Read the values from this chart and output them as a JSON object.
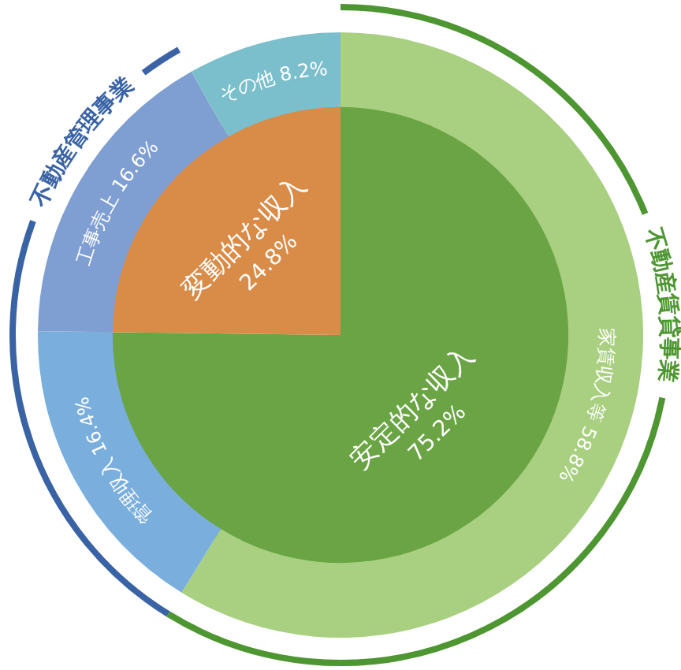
{
  "chart_data": [
    {
      "type": "pie",
      "legend": false,
      "categories": [
        "安定的な収入",
        "変動的な収入"
      ],
      "values": [
        75.2,
        24.8
      ],
      "value_labels": [
        "75.2%",
        "24.8%"
      ],
      "colors": [
        "#6aa444",
        "#d98b48"
      ]
    },
    {
      "type": "donut",
      "legend": false,
      "categories": [
        "家賃収入等",
        "管理収入",
        "工事売上",
        "その他"
      ],
      "values": [
        58.8,
        16.4,
        16.6,
        8.2
      ],
      "value_labels": [
        "58.8%",
        "16.4%",
        "16.6%",
        "8.2%"
      ],
      "colors": [
        "#a8d080",
        "#7aaedc",
        "#7f9fd3",
        "#7bbfcc"
      ],
      "annotations": [
        "不動産賃貸事業",
        "不動産管理事業"
      ]
    }
  ]
}
